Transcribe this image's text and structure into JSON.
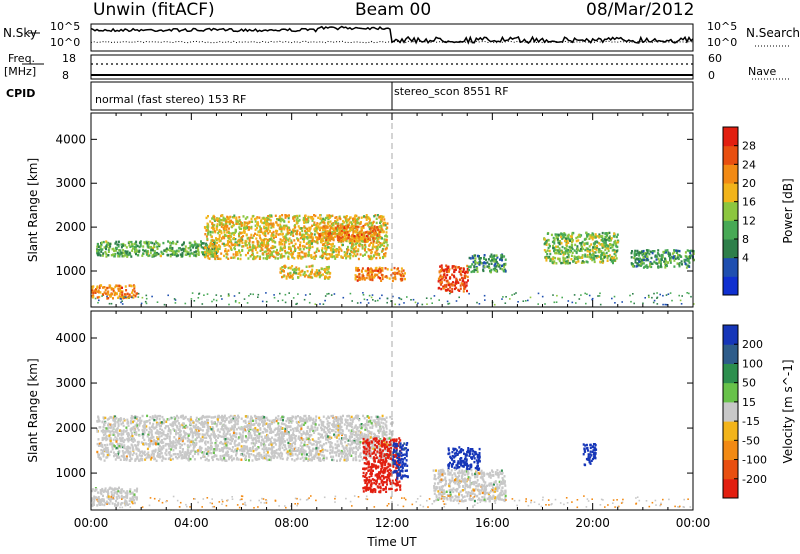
{
  "header": {
    "station": "Unwin (fitACF)",
    "beam": "Beam 00",
    "date": "08/Mar/2012"
  },
  "top_panels": {
    "nsky_label": "N.Sky",
    "nsearch_label": "N.Search",
    "noise_ticks_left": [
      "10^5",
      "10^0"
    ],
    "noise_ticks_right": [
      "10^5",
      "10^0"
    ],
    "freq_label_line1": "Freq.",
    "freq_label_line2": "[MHz]",
    "freq_ticks": [
      "18",
      "8"
    ],
    "nave_label": "Nave",
    "nave_ticks": [
      "60",
      "0"
    ],
    "cpid_label": "CPID",
    "cpid_modes": [
      {
        "name": "normal (fast stereo) 153 RF",
        "start_hour": 0
      },
      {
        "name": "stereo_scon 8551 RF",
        "start_hour": 12
      }
    ]
  },
  "chart_data": [
    {
      "type": "heatmap",
      "title": "Power",
      "ylabel": "Slant Range [km]",
      "yticks": [
        "4000",
        "3000",
        "2000",
        "1000"
      ],
      "ylim": [
        180,
        4600
      ],
      "xlim": [
        0,
        24
      ],
      "colorbar": {
        "label": "Power [dB]",
        "ticks": [
          "28",
          "24",
          "20",
          "16",
          "12",
          "8",
          "4"
        ],
        "colors": [
          "#1030d0",
          "#1f4fb0",
          "#2e7f4a",
          "#47a955",
          "#8cc63f",
          "#f2b41a",
          "#f28a14",
          "#e84f10",
          "#e21f10"
        ]
      },
      "echo_regions": [
        {
          "start_hour": 0.0,
          "end_hour": 1.8,
          "range_km": [
            400,
            700
          ],
          "power_db": 24
        },
        {
          "start_hour": 0.2,
          "end_hour": 5.0,
          "range_km": [
            1350,
            1700
          ],
          "power_db": 14
        },
        {
          "start_hour": 4.5,
          "end_hour": 11.8,
          "range_km": [
            1300,
            2300
          ],
          "power_db": 20
        },
        {
          "start_hour": 9.0,
          "end_hour": 11.5,
          "range_km": [
            1700,
            2050
          ],
          "power_db": 24
        },
        {
          "start_hour": 7.5,
          "end_hour": 9.5,
          "range_km": [
            850,
            1150
          ],
          "power_db": 20
        },
        {
          "start_hour": 10.5,
          "end_hour": 12.5,
          "range_km": [
            800,
            1100
          ],
          "power_db": 24
        },
        {
          "start_hour": 13.8,
          "end_hour": 15.0,
          "range_km": [
            550,
            1150
          ],
          "power_db": 28
        },
        {
          "start_hour": 15.0,
          "end_hour": 16.5,
          "range_km": [
            1000,
            1400
          ],
          "power_db": 12
        },
        {
          "start_hour": 18.0,
          "end_hour": 21.0,
          "range_km": [
            1200,
            1900
          ],
          "power_db": 16
        },
        {
          "start_hour": 21.5,
          "end_hour": 24.0,
          "range_km": [
            1100,
            1500
          ],
          "power_db": 12
        }
      ]
    },
    {
      "type": "heatmap",
      "title": "Velocity",
      "ylabel": "Slant Range [km]",
      "yticks": [
        "4000",
        "3000",
        "2000",
        "1000"
      ],
      "ylim": [
        180,
        4600
      ],
      "xlim": [
        0,
        24
      ],
      "xlabel": "Time UT",
      "xticks": [
        "00:00",
        "04:00",
        "08:00",
        "12:00",
        "16:00",
        "20:00",
        "00:00"
      ],
      "colorbar": {
        "label": "Velocity [m s^-1]",
        "ticks": [
          "200",
          "100",
          "50",
          "15",
          "-15",
          "-50",
          "-100",
          "-200"
        ],
        "colors": [
          "#1636b8",
          "#2e5c8a",
          "#2d8f4e",
          "#68c24a",
          "#c8c8c8",
          "#f2b41a",
          "#f28a14",
          "#e84f10",
          "#e21f10"
        ]
      },
      "echo_regions": [
        {
          "start_hour": 0.0,
          "end_hour": 1.8,
          "range_km": [
            300,
            700
          ],
          "velocity": 0
        },
        {
          "start_hour": 0.2,
          "end_hour": 12.0,
          "range_km": [
            1300,
            2300
          ],
          "velocity": 0
        },
        {
          "start_hour": 10.8,
          "end_hour": 12.3,
          "range_km": [
            600,
            1800
          ],
          "velocity": -200
        },
        {
          "start_hour": 12.0,
          "end_hour": 12.6,
          "range_km": [
            900,
            1700
          ],
          "velocity": 150
        },
        {
          "start_hour": 14.2,
          "end_hour": 15.5,
          "range_km": [
            1100,
            1600
          ],
          "velocity": 200
        },
        {
          "start_hour": 19.6,
          "end_hour": 20.1,
          "range_km": [
            1200,
            1700
          ],
          "velocity": 200
        },
        {
          "start_hour": 13.6,
          "end_hour": 16.5,
          "range_km": [
            400,
            1100
          ],
          "velocity": 0
        }
      ]
    }
  ]
}
